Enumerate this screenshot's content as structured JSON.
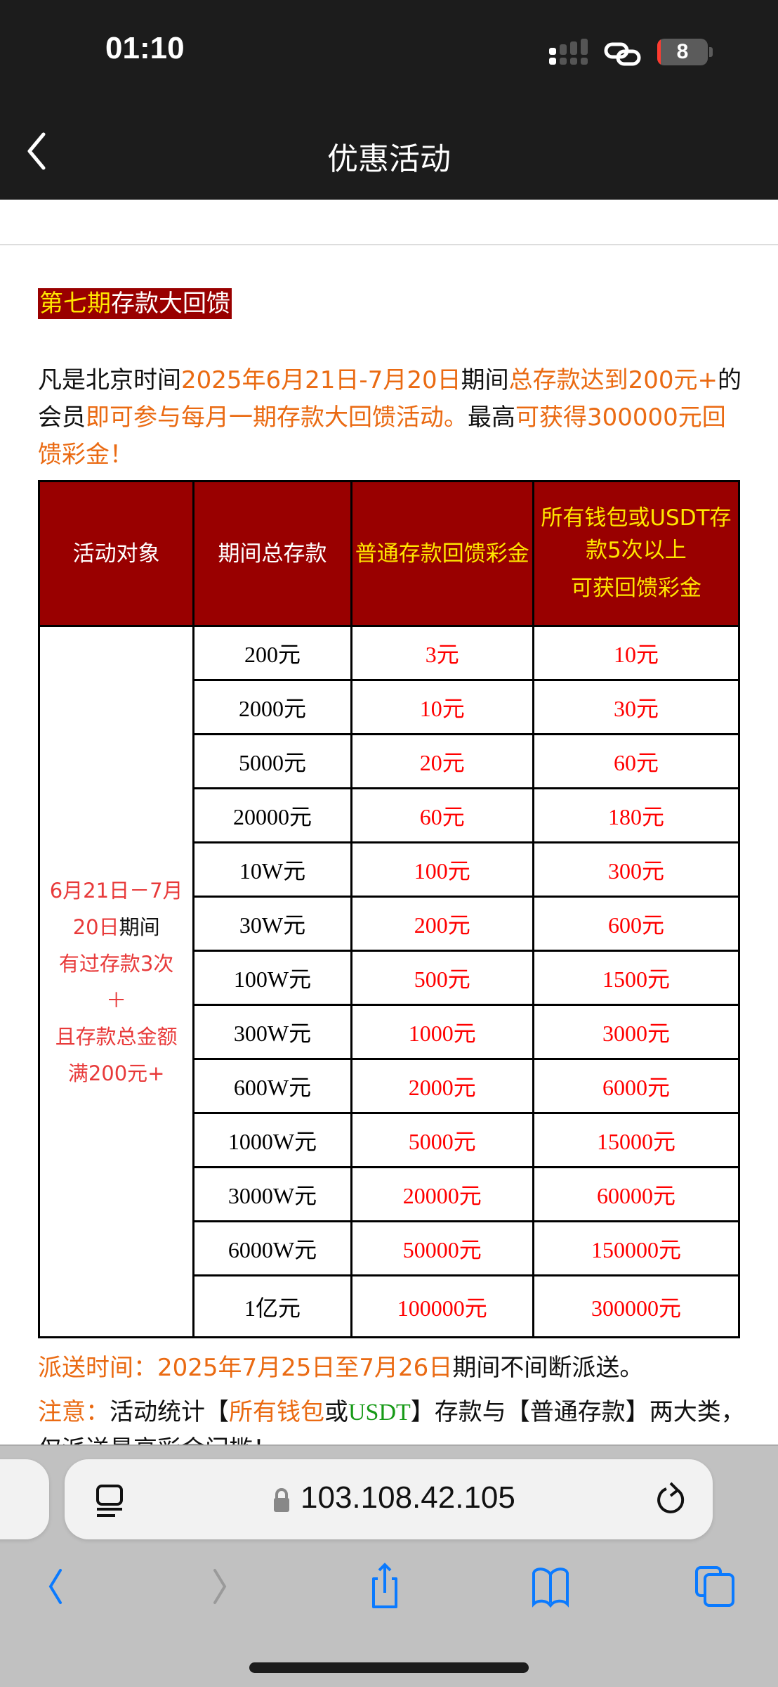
{
  "status": {
    "time": "01:10",
    "battery": "8"
  },
  "nav": {
    "title": "优惠活动"
  },
  "banner": {
    "highlight": "第七期",
    "rest": "存款大回馈"
  },
  "intro": {
    "p1": "凡是北京时间",
    "p2": "2025年6月21日-7月20日",
    "p3": "期间",
    "p4": "总存款达到200元+",
    "p5": "的会员",
    "p6": "即可参与每月一期存款大回馈活动。",
    "p7": "最高",
    "p8": "可获得300000元回馈彩金！"
  },
  "table": {
    "headers": [
      "活动对象",
      "期间总存款",
      "普通存款回馈彩金",
      "所有钱包或USDT存款5次以上"
    ],
    "header4_line2": "可获回馈彩金",
    "target": {
      "a": "6月21日－7月20日",
      "b": "期间",
      "c": "有过存款3次",
      "d": "＋",
      "e": "且存款总金额满200元+"
    },
    "rows": [
      [
        "200元",
        "3元",
        "10元"
      ],
      [
        "2000元",
        "10元",
        "30元"
      ],
      [
        "5000元",
        "20元",
        "60元"
      ],
      [
        "20000元",
        "60元",
        "180元"
      ],
      [
        "10W元",
        "100元",
        "300元"
      ],
      [
        "30W元",
        "200元",
        "600元"
      ],
      [
        "100W元",
        "500元",
        "1500元"
      ],
      [
        "300W元",
        "1000元",
        "3000元"
      ],
      [
        "600W元",
        "2000元",
        "6000元"
      ],
      [
        "1000W元",
        "5000元",
        "15000元"
      ],
      [
        "3000W元",
        "20000元",
        "60000元"
      ],
      [
        "6000W元",
        "50000元",
        "150000元"
      ],
      [
        "1亿元",
        "100000元",
        "300000元"
      ]
    ]
  },
  "footer": {
    "dispatch_label": "派送时间：",
    "dispatch_time": "2025年7月25日至7月26日",
    "dispatch_rest": "期间不间断派送。",
    "note_label": "注意：",
    "note_a": "活动统计【",
    "note_b": "所有钱包",
    "note_c": "或",
    "note_d": "USDT",
    "note_e": "】存款与【普通存款】两大类，仅派送最高彩金门槛！"
  },
  "browser": {
    "url": "103.108.42.105"
  },
  "colors": {
    "header_bg": "#990000",
    "header_text": "#ffe600",
    "accent_orange": "#ea6a12",
    "value_red": "#ff0000",
    "ios_blue": "#0a7aff"
  }
}
